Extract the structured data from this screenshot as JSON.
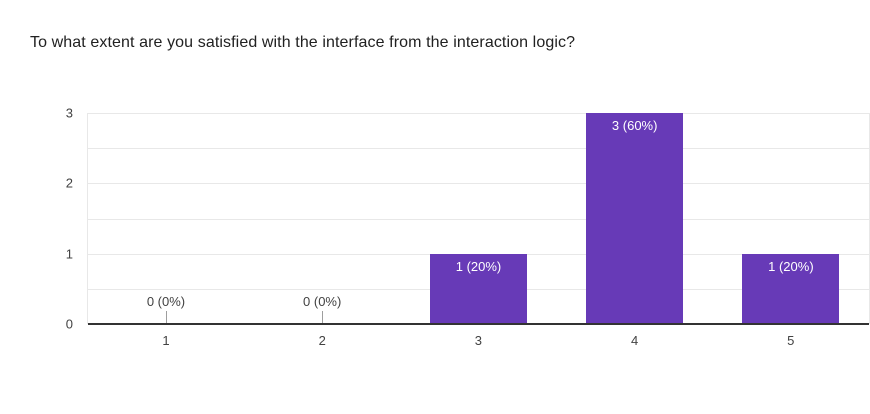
{
  "chart_data": {
    "type": "bar",
    "title": "To what extent are you satisfied with the interface from the interaction logic?",
    "categories": [
      "1",
      "2",
      "3",
      "4",
      "5"
    ],
    "values": [
      0,
      0,
      1,
      3,
      1
    ],
    "bar_labels": [
      "0 (0%)",
      "0 (0%)",
      "1 (20%)",
      "3 (60%)",
      "1 (20%)"
    ],
    "xlabel": "",
    "ylabel": "",
    "ylim": [
      0,
      3
    ],
    "yticks": [
      0,
      1,
      2,
      3
    ],
    "gridlines_at": [
      0.5,
      1,
      1.5,
      2,
      2.5,
      3
    ],
    "grid": true,
    "legend_position": "none",
    "colors": {
      "bar": "#673ab7",
      "bar_label_text": "#ffffff",
      "gridline": "#e8e8e8",
      "axis_line": "#333333",
      "tick_text": "#424242",
      "title_text": "#212121",
      "background": "#ffffff"
    }
  }
}
